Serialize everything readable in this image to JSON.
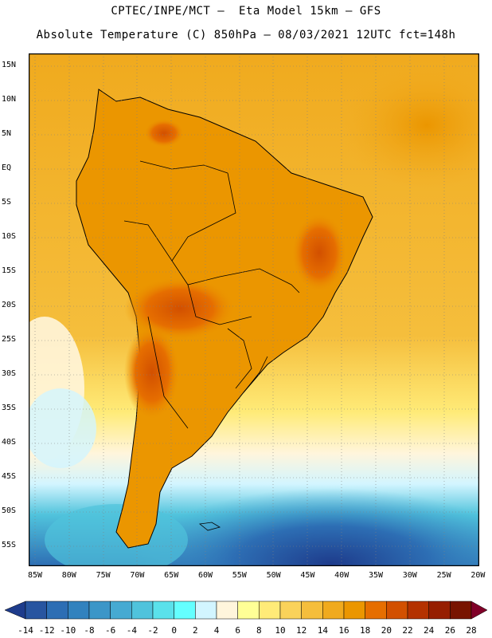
{
  "header": {
    "line1": "CPTEC/INPE/MCT –  Eta Model 15km – GFS",
    "line2": "Absolute Temperature (C) 850hPa – 08/03/2021 12UTC fct=148h"
  },
  "map": {
    "lat_labels": [
      "15N",
      "10N",
      "5N",
      "EQ",
      "5S",
      "10S",
      "15S",
      "20S",
      "25S",
      "30S",
      "35S",
      "40S",
      "45S",
      "50S",
      "55S"
    ],
    "lon_labels": [
      "85W",
      "80W",
      "75W",
      "70W",
      "65W",
      "60W",
      "55W",
      "50W",
      "45W",
      "40W",
      "35W",
      "30W",
      "25W",
      "20W"
    ],
    "grid": "dotted",
    "colors": {
      "land_outline": "#000000",
      "background_warm": "#f0b400",
      "hot_interior": "#e06400",
      "cold_south": "#1e6eb4"
    }
  },
  "legend": {
    "labels": [
      "-14",
      "-12",
      "-10",
      "-8",
      "-6",
      "-4",
      "-2",
      "0",
      "2",
      "4",
      "6",
      "8",
      "10",
      "12",
      "14",
      "16",
      "18",
      "20",
      "22",
      "24",
      "26",
      "28"
    ],
    "colors": [
      "#1e3c8c",
      "#2855a0",
      "#2d6eb4",
      "#3282be",
      "#3c96c8",
      "#46aad2",
      "#50c3dc",
      "#5ae1eb",
      "#64ffff",
      "#d2f5ff",
      "#fff5dc",
      "#ffff96",
      "#ffeb78",
      "#fad25a",
      "#f5be3c",
      "#f0aa1e",
      "#eb9600",
      "#e66e00",
      "#d25000",
      "#b43200",
      "#961e00",
      "#781400",
      "#800028"
    ]
  }
}
